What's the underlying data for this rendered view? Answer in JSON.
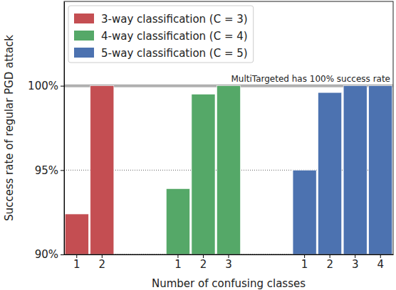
{
  "chart_data": {
    "type": "bar",
    "x_label": "Number of confusing classes",
    "y_label": "Success rate of regular PGD attack",
    "categories": [
      "1",
      "2",
      null,
      null,
      "1",
      "2",
      "3",
      null,
      null,
      "1",
      "2",
      "3",
      "4"
    ],
    "series": [
      {
        "name": "3-way classification (C = 3)",
        "color": "#c44e52",
        "values": [
          92.4,
          100,
          null,
          null,
          null,
          null,
          null,
          null,
          null,
          null,
          null,
          null,
          null
        ]
      },
      {
        "name": "4-way classification (C = 4)",
        "color": "#55a868",
        "values": [
          null,
          null,
          null,
          null,
          93.9,
          99.5,
          100,
          null,
          null,
          null,
          null,
          null,
          null
        ]
      },
      {
        "name": "5-way classification (C = 5)",
        "color": "#4c72b0",
        "values": [
          null,
          null,
          null,
          null,
          null,
          null,
          null,
          null,
          null,
          95.0,
          99.6,
          100,
          100
        ]
      }
    ],
    "ylim": [
      90,
      105
    ],
    "yticks": [
      {
        "value": 90,
        "label": "90%"
      },
      {
        "value": 95,
        "label": "95%"
      },
      {
        "value": 100,
        "label": "100%"
      }
    ],
    "grid": true,
    "legend": "upper left",
    "annotations": [
      {
        "text": "MultiTargeted has 100% success rate",
        "y": 100
      }
    ]
  }
}
